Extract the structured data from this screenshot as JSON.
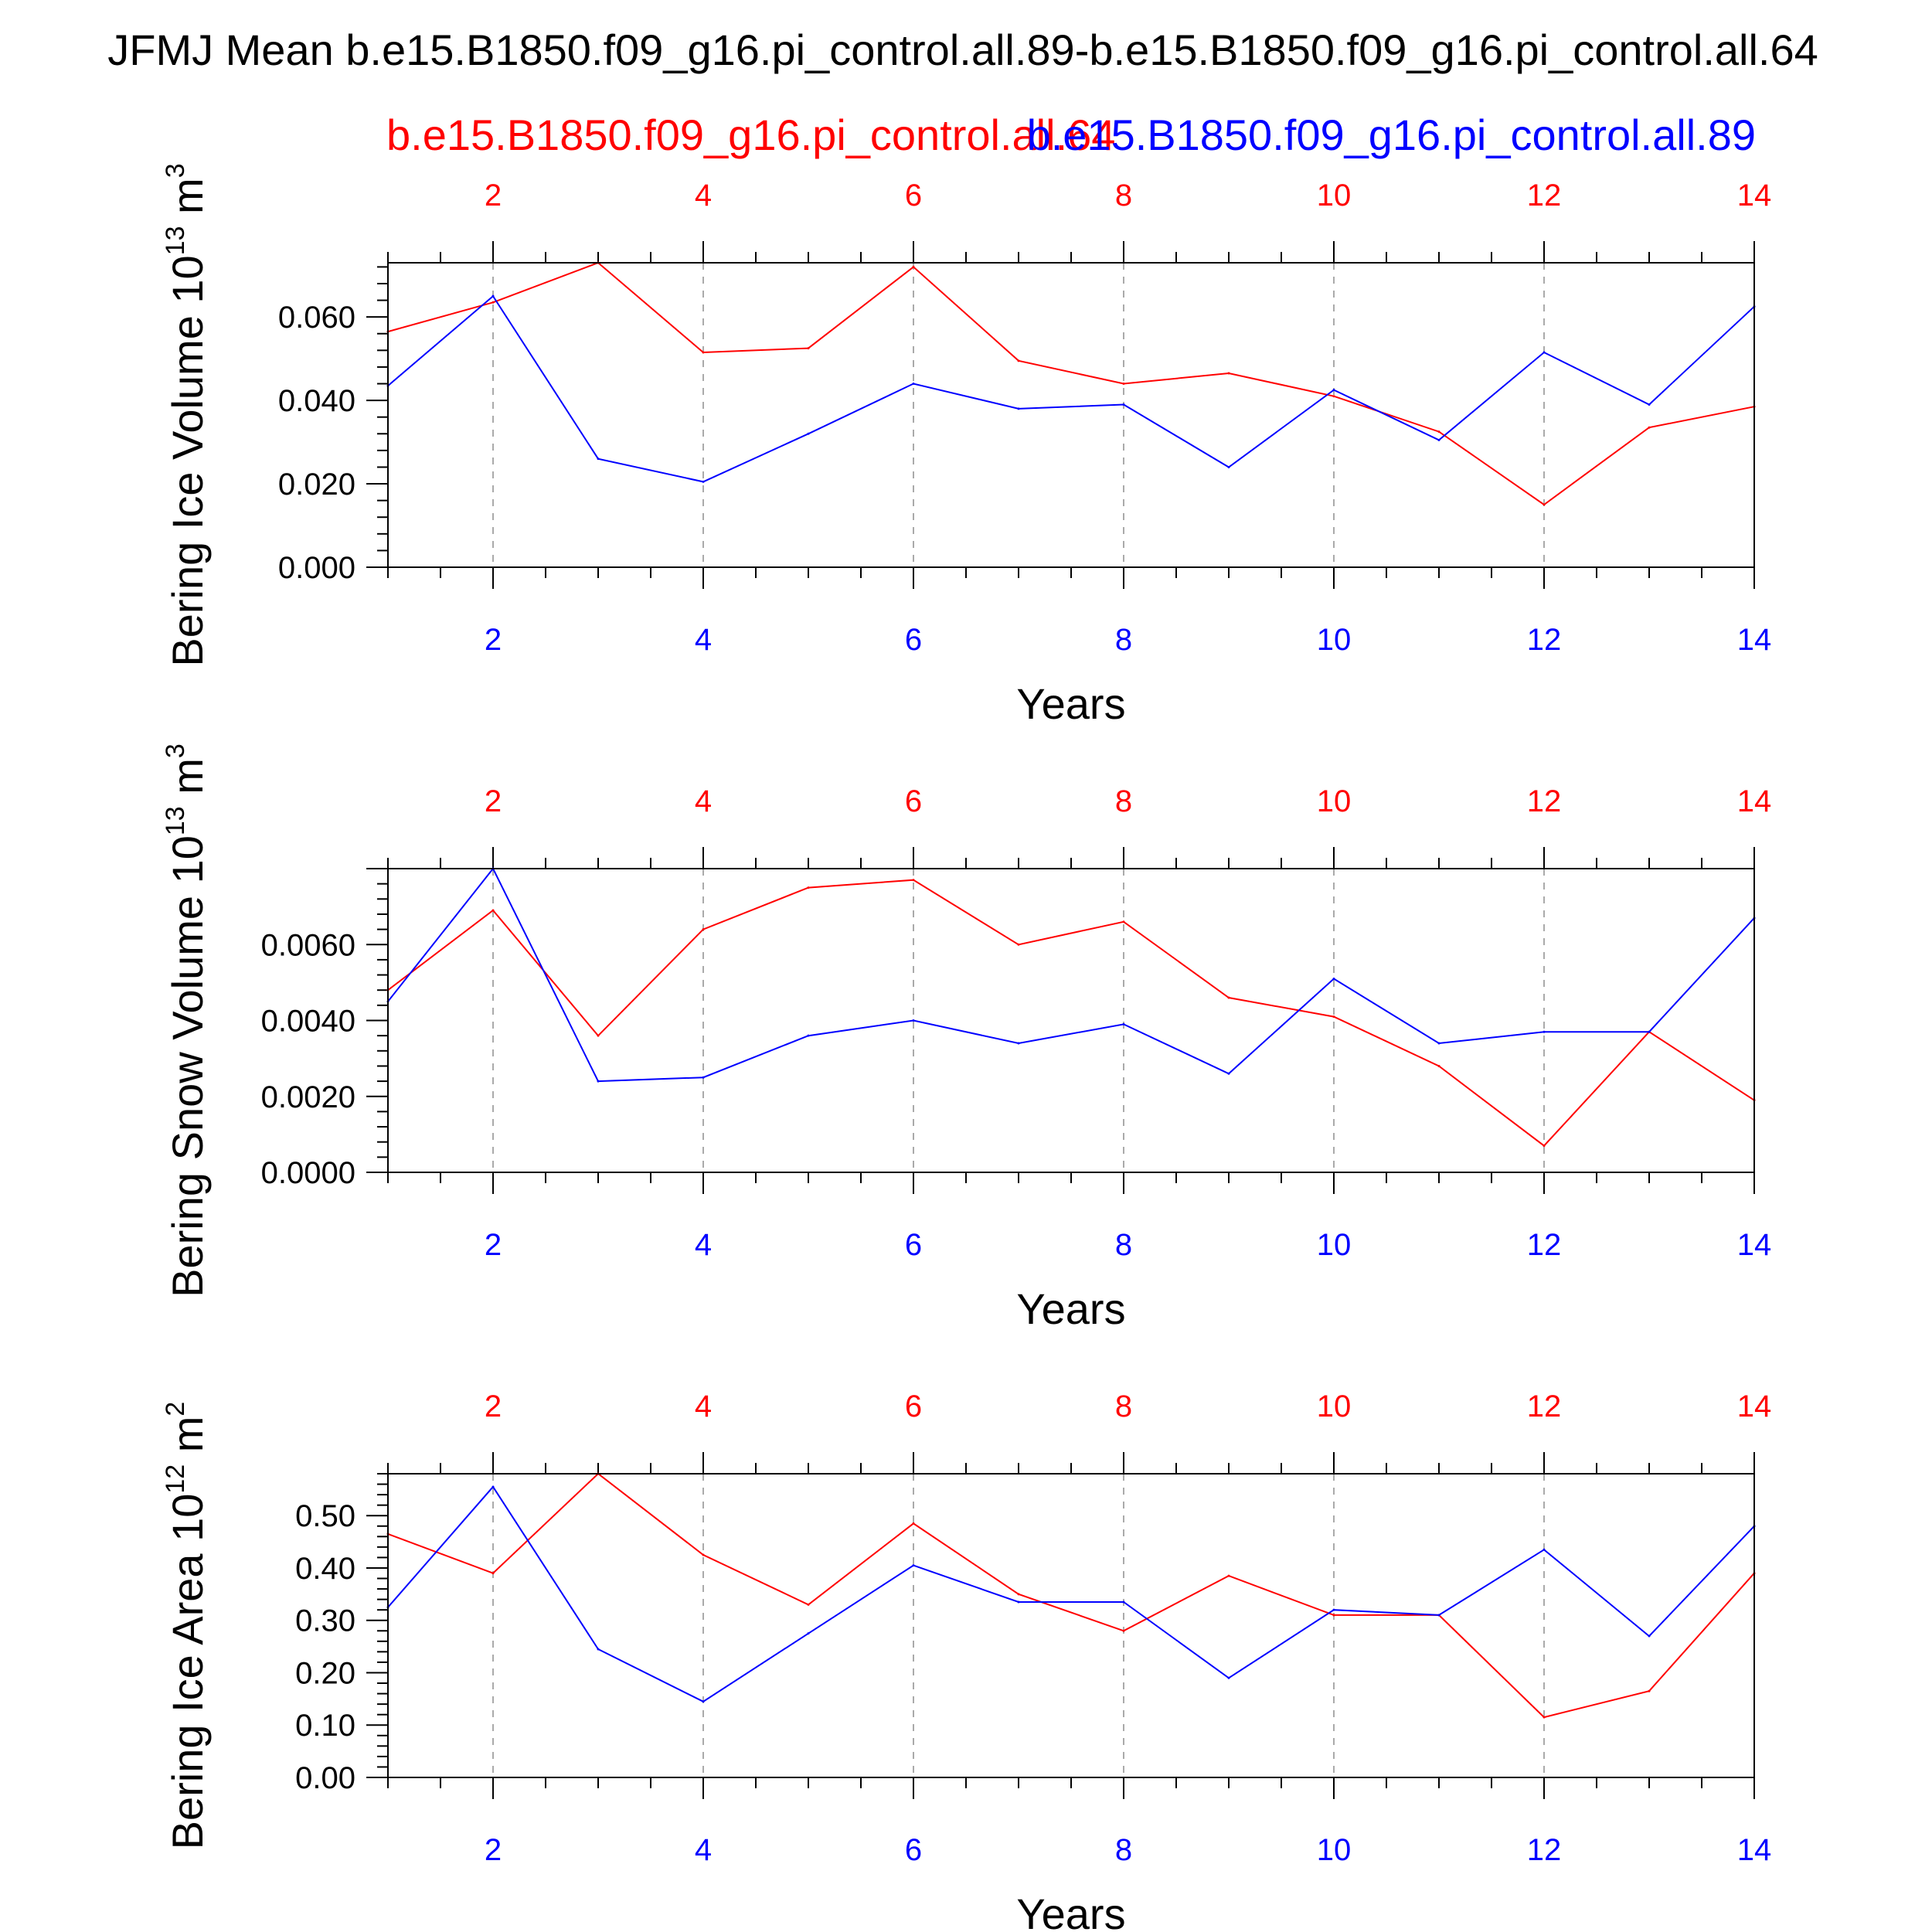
{
  "figure": {
    "title": "JFMJ Mean b.e15.B1850.f09_g16.pi_control.all.89-b.e15.B1850.f09_g16.pi_control.all.64",
    "case_left": "b.e15.B1850.f09_g16.pi_control.all.64",
    "case_right": "b.e15.B1850.f09_g16.pi_control.all.89",
    "colors": {
      "case_left": "#ff0000",
      "case_right": "#0000ff",
      "axis": "#000000",
      "grid": "#aaaaaa"
    }
  },
  "chart_data": [
    {
      "type": "line",
      "ylabel": "Bering Ice Volume",
      "yunit_mantissa": "10",
      "yunit_exp": "13",
      "yunit_base": "m",
      "yunit_power": "3",
      "xlabel": "Years",
      "xlim": [
        1,
        14
      ],
      "ylim": [
        0,
        0.073
      ],
      "xticks": [
        2,
        4,
        6,
        8,
        10,
        12,
        14
      ],
      "xtick_labels": [
        "2",
        "4",
        "6",
        "8",
        "10",
        "12",
        "14"
      ],
      "yticks": [
        0,
        0.02,
        0.04,
        0.06
      ],
      "ytick_labels": [
        "0.000",
        "0.020",
        "0.040",
        "0.060"
      ],
      "x": [
        1,
        2,
        3,
        4,
        5,
        6,
        7,
        8,
        9,
        10,
        11,
        12,
        13,
        14
      ],
      "series": [
        {
          "name": "b.e15.B1850.f09_g16.pi_control.all.64",
          "color": "#ff0000",
          "values": [
            0.0565,
            0.0635,
            0.073,
            0.0515,
            0.0525,
            0.072,
            0.0495,
            0.044,
            0.0465,
            0.041,
            0.0325,
            0.015,
            0.0335,
            0.0385
          ]
        },
        {
          "name": "b.e15.B1850.f09_g16.pi_control.all.89",
          "color": "#0000ff",
          "values": [
            0.0435,
            0.065,
            0.026,
            0.0205,
            0.032,
            0.044,
            0.038,
            0.039,
            0.024,
            0.0425,
            0.0305,
            0.0515,
            0.039,
            0.0625
          ]
        }
      ]
    },
    {
      "type": "line",
      "ylabel": "Bering Snow Volume",
      "yunit_mantissa": "10",
      "yunit_exp": "13",
      "yunit_base": "m",
      "yunit_power": "3",
      "xlabel": "Years",
      "xlim": [
        1,
        14
      ],
      "ylim": [
        0,
        0.008
      ],
      "xticks": [
        2,
        4,
        6,
        8,
        10,
        12,
        14
      ],
      "xtick_labels": [
        "2",
        "4",
        "6",
        "8",
        "10",
        "12",
        "14"
      ],
      "yticks": [
        0,
        0.002,
        0.004,
        0.006
      ],
      "ytick_labels": [
        "0.0000",
        "0.0020",
        "0.0040",
        "0.0060"
      ],
      "x": [
        1,
        2,
        3,
        4,
        5,
        6,
        7,
        8,
        9,
        10,
        11,
        12,
        13,
        14
      ],
      "series": [
        {
          "name": "b.e15.B1850.f09_g16.pi_control.all.64",
          "color": "#ff0000",
          "values": [
            0.0048,
            0.0069,
            0.0036,
            0.0064,
            0.0075,
            0.0077,
            0.006,
            0.0066,
            0.0046,
            0.0041,
            0.0028,
            0.0007,
            0.0037,
            0.0019
          ]
        },
        {
          "name": "b.e15.B1850.f09_g16.pi_control.all.89",
          "color": "#0000ff",
          "values": [
            0.0045,
            0.008,
            0.0024,
            0.0025,
            0.0036,
            0.004,
            0.0034,
            0.0039,
            0.0026,
            0.0051,
            0.0034,
            0.0037,
            0.0037,
            0.0067
          ]
        }
      ]
    },
    {
      "type": "line",
      "ylabel": "Bering Ice Area",
      "yunit_mantissa": "10",
      "yunit_exp": "12",
      "yunit_base": "m",
      "yunit_power": "2",
      "xlabel": "Years",
      "xlim": [
        1,
        14
      ],
      "ylim": [
        0,
        0.58
      ],
      "xticks": [
        2,
        4,
        6,
        8,
        10,
        12,
        14
      ],
      "xtick_labels": [
        "2",
        "4",
        "6",
        "8",
        "10",
        "12",
        "14"
      ],
      "yticks": [
        0,
        0.1,
        0.2,
        0.3,
        0.4,
        0.5
      ],
      "ytick_labels": [
        "0.00",
        "0.10",
        "0.20",
        "0.30",
        "0.40",
        "0.50"
      ],
      "x": [
        1,
        2,
        3,
        4,
        5,
        6,
        7,
        8,
        9,
        10,
        11,
        12,
        13,
        14
      ],
      "series": [
        {
          "name": "b.e15.B1850.f09_g16.pi_control.all.64",
          "color": "#ff0000",
          "values": [
            0.465,
            0.39,
            0.58,
            0.425,
            0.33,
            0.485,
            0.35,
            0.28,
            0.385,
            0.31,
            0.31,
            0.115,
            0.165,
            0.39
          ]
        },
        {
          "name": "b.e15.B1850.f09_g16.pi_control.all.89",
          "color": "#0000ff",
          "values": [
            0.325,
            0.555,
            0.245,
            0.145,
            0.275,
            0.405,
            0.335,
            0.335,
            0.19,
            0.32,
            0.31,
            0.435,
            0.27,
            0.48
          ]
        }
      ]
    }
  ]
}
